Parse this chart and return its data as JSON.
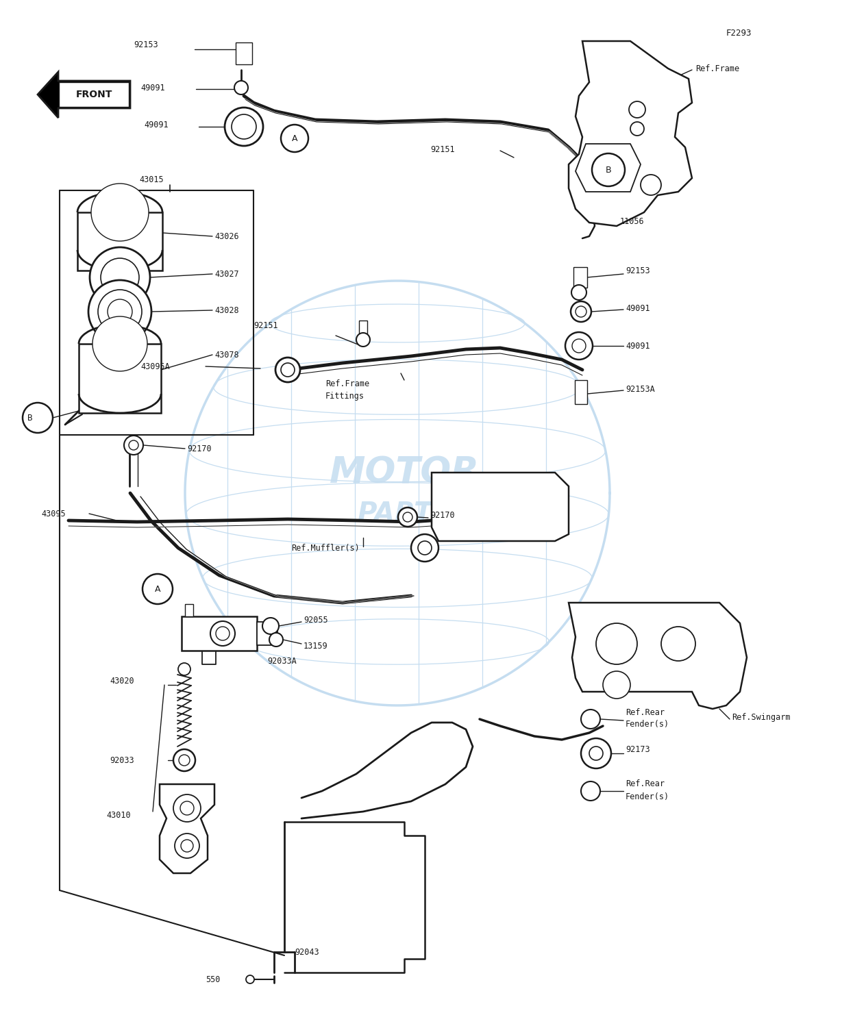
{
  "bg_color": "#ffffff",
  "line_color": "#1a1a1a",
  "watermark_color": "#c5ddf0",
  "fig_code": "F2293",
  "figsize": [
    12.45,
    15.01
  ],
  "dpi": 100,
  "xlim": [
    0,
    1245
  ],
  "ylim": [
    0,
    1501
  ]
}
